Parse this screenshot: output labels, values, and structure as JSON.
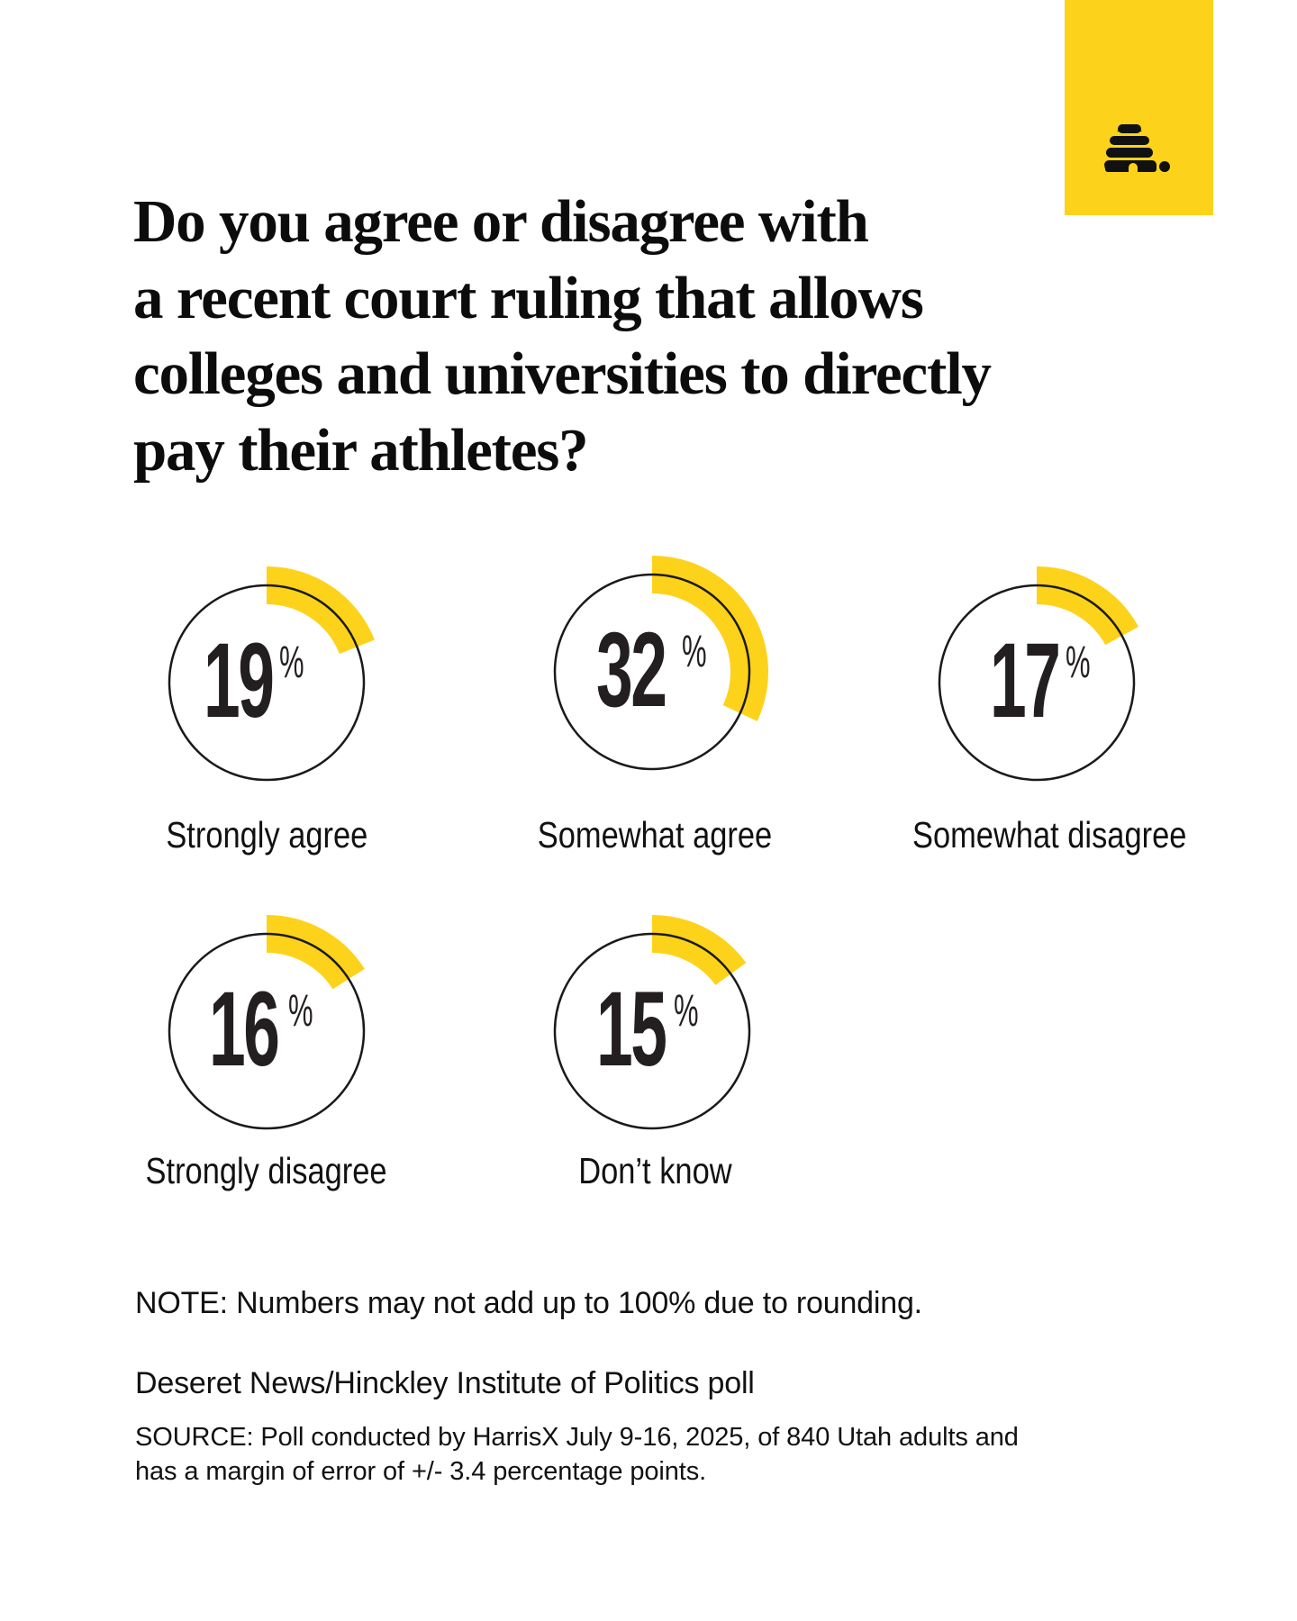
{
  "brand": {
    "icon": "beehive-logo-icon",
    "box_color": "#FDD21A"
  },
  "title": {
    "lines": [
      "Do you agree or disagree with",
      "a recent court ruling that allows",
      "colleges and universities to directly",
      "pay their athletes?"
    ]
  },
  "colors": {
    "accent": "#FDD21A",
    "ring": "#1a1a1a",
    "number": "#231f20",
    "text": "#111111"
  },
  "items": [
    {
      "value": "19",
      "unit": "%",
      "label": "Strongly agree"
    },
    {
      "value": "32",
      "unit": "%",
      "label": "Somewhat agree"
    },
    {
      "value": "17",
      "unit": "%",
      "label": "Somewhat disagree"
    },
    {
      "value": "16",
      "unit": "%",
      "label": "Strongly disagree"
    },
    {
      "value": "15",
      "unit": "%",
      "label": "Don’t know"
    }
  ],
  "footer": {
    "note": "NOTE: Numbers may not add up to 100% due to rounding.",
    "poll_name": "Deseret News/Hinckley Institute of Politics poll",
    "source_lines": [
      "SOURCE: Poll conducted by HarrisX July 9-16, 2025, of 840 Utah adults and",
      "has a margin of error of +/- 3.4 percentage points."
    ]
  },
  "chart_data": {
    "type": "pie",
    "title": "Do you agree or disagree with a recent court ruling that allows colleges and universities to directly pay their athletes?",
    "categories": [
      "Strongly agree",
      "Somewhat agree",
      "Somewhat disagree",
      "Strongly disagree",
      "Don’t know"
    ],
    "values": [
      19,
      32,
      17,
      16,
      15
    ],
    "unit": "%",
    "display": "individual radial progress rings, each arc starting at 12 o'clock and sweeping clockwise by its percentage",
    "note": "Numbers may not add up to 100% due to rounding.",
    "source": "Deseret News/Hinckley Institute of Politics poll; HarrisX July 9-16, 2025, 840 Utah adults, margin of error +/- 3.4 percentage points"
  }
}
